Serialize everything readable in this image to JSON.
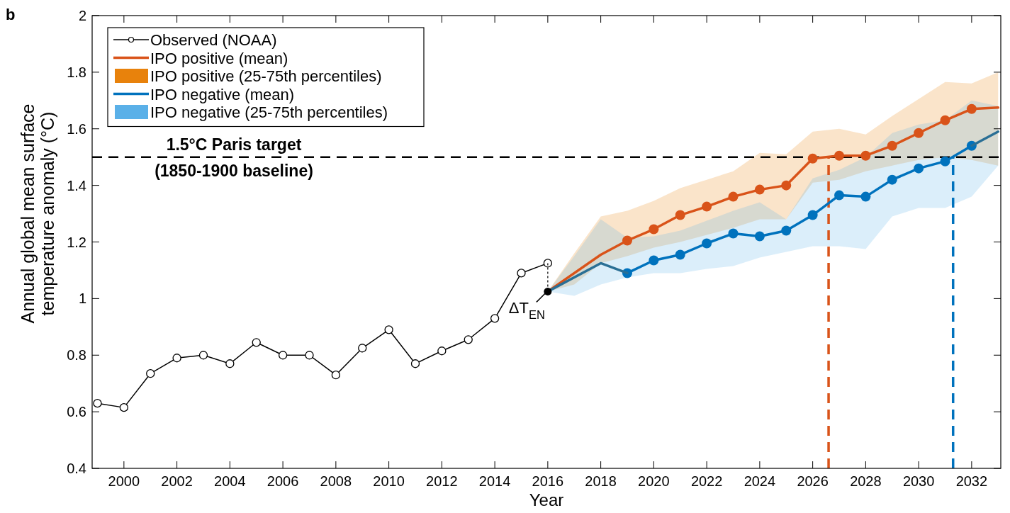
{
  "chart_data": {
    "type": "line",
    "xlabel": "Year",
    "ylabel": "Annual global mean surface temperature anomaly (°C)",
    "xlim": [
      1998.8,
      2033.1
    ],
    "ylim": [
      0.4,
      2
    ],
    "xticks": [
      2000,
      2002,
      2004,
      2006,
      2008,
      2010,
      2012,
      2014,
      2016,
      2018,
      2020,
      2022,
      2024,
      2026,
      2028,
      2030,
      2032
    ],
    "yticks": [
      0.4,
      0.6,
      0.8,
      {
        "value": 1,
        "label": "1"
      },
      1.2,
      1.4,
      1.6,
      1.8,
      {
        "value": 2,
        "label": "2"
      }
    ],
    "grid": false,
    "legend": "top left",
    "series": [
      {
        "name": "Observed (NOAA)",
        "color": "#000000",
        "marker": "circle",
        "x": [
          1999,
          2000,
          2001,
          2002,
          2003,
          2004,
          2005,
          2006,
          2007,
          2008,
          2009,
          2010,
          2011,
          2012,
          2013,
          2014,
          2015,
          2016
        ],
        "values": [
          0.63,
          0.615,
          0.735,
          0.79,
          0.8,
          0.77,
          0.845,
          0.8,
          0.8,
          0.73,
          0.825,
          0.89,
          0.77,
          0.815,
          0.855,
          0.93,
          1.09,
          1.125
        ]
      },
      {
        "name": "IPO positive (mean)",
        "color": "#d95319",
        "marker": "circle",
        "x": [
          2019,
          2020,
          2021,
          2022,
          2023,
          2024,
          2025,
          2026,
          2027,
          2028,
          2029,
          2030,
          2031,
          2032
        ],
        "values": [
          1.205,
          1.245,
          1.295,
          1.325,
          1.36,
          1.385,
          1.4,
          1.495,
          1.505,
          1.505,
          1.54,
          1.585,
          1.63,
          1.67
        ]
      },
      {
        "name": "IPO positive (25-75th percentiles)",
        "color": "#e8820c",
        "x": [
          2016,
          2017,
          2018,
          2019,
          2020,
          2021,
          2022,
          2023,
          2024,
          2025,
          2026,
          2027,
          2028,
          2029,
          2030,
          2031,
          2032,
          2033
        ],
        "values": [
          null,
          null,
          null,
          null,
          null,
          null,
          null,
          null,
          null,
          null,
          null,
          null,
          null,
          null,
          null,
          null,
          null,
          null
        ],
        "lower": [
          1.025,
          1.05,
          1.125,
          1.15,
          1.18,
          1.2,
          1.225,
          1.25,
          1.28,
          1.28,
          1.41,
          1.42,
          1.45,
          1.47,
          1.49,
          1.5,
          1.49,
          1.47
        ],
        "upper": [
          1.025,
          1.16,
          1.29,
          1.31,
          1.345,
          1.39,
          1.42,
          1.45,
          1.515,
          1.51,
          1.59,
          1.6,
          1.58,
          1.645,
          1.705,
          1.765,
          1.76,
          1.8
        ]
      },
      {
        "name": "IPO negative (mean)",
        "color": "#0072bd",
        "marker": "circle",
        "x": [
          2019,
          2020,
          2021,
          2022,
          2023,
          2024,
          2025,
          2026,
          2027,
          2028,
          2029,
          2030,
          2031,
          2032
        ],
        "values": [
          1.09,
          1.135,
          1.155,
          1.195,
          1.23,
          1.22,
          1.24,
          1.295,
          1.365,
          1.36,
          1.42,
          1.46,
          1.485,
          1.54
        ]
      },
      {
        "name": "IPO negative (25-75th percentiles)",
        "color": "#5ab0e8",
        "x": [
          2016,
          2017,
          2018,
          2019,
          2020,
          2021,
          2022,
          2023,
          2024,
          2025,
          2026,
          2027,
          2028,
          2029,
          2030,
          2031,
          2032,
          2033
        ],
        "values": [
          null,
          null,
          null,
          null,
          null,
          null,
          null,
          null,
          null,
          null,
          null,
          null,
          null,
          null,
          null,
          null,
          null,
          null
        ],
        "lower": [
          1.025,
          1.01,
          1.05,
          1.075,
          1.09,
          1.09,
          1.105,
          1.115,
          1.145,
          1.165,
          1.185,
          1.185,
          1.175,
          1.29,
          1.32,
          1.32,
          1.36,
          1.47
        ],
        "upper": [
          1.025,
          1.15,
          1.28,
          1.215,
          1.22,
          1.24,
          1.275,
          1.31,
          1.34,
          1.28,
          1.425,
          1.455,
          1.5,
          1.585,
          1.615,
          1.63,
          1.7,
          1.68
        ]
      },
      {
        "color": "#d95319",
        "marker": "none",
        "x": [
          2016,
          2018,
          2019,
          2026,
          2032,
          2033
        ],
        "values": [
          1.025,
          1.155,
          1.205,
          null,
          1.67,
          1.675
        ]
      },
      {
        "color": "#2a6f95",
        "marker": "none",
        "x": [
          2016,
          2018,
          2019,
          2026,
          2032,
          2033
        ],
        "values": [
          1.025,
          1.125,
          1.09,
          null,
          1.54,
          1.59
        ]
      },
      {
        "color": "#000000",
        "marker": "none",
        "line_style": "dashed",
        "x": [
          2016,
          2016
        ],
        "values": [
          1.125,
          1.025
        ]
      },
      {
        "type": "scatter",
        "color": "#000000",
        "marker": "circle",
        "x": [
          2016
        ],
        "values": [
          1.025
        ]
      }
    ],
    "ref_lines": [
      {
        "axis": "y",
        "value": 1.5,
        "label": "1.5°C Paris target (1850-1900 baseline)",
        "color": "#000000",
        "line_style": "dashed"
      },
      {
        "axis": "x",
        "value": 2026.6,
        "label": null,
        "color": "#d95319",
        "line_style": "dashed"
      },
      {
        "axis": "x",
        "value": 2031.3,
        "label": null,
        "color": "#0072bd",
        "line_style": "dashed"
      }
    ],
    "annotations": [
      "b",
      {
        "text": "ΔT$_{EN}$",
        "x": 2016,
        "y": 1.025
      }
    ]
  }
}
